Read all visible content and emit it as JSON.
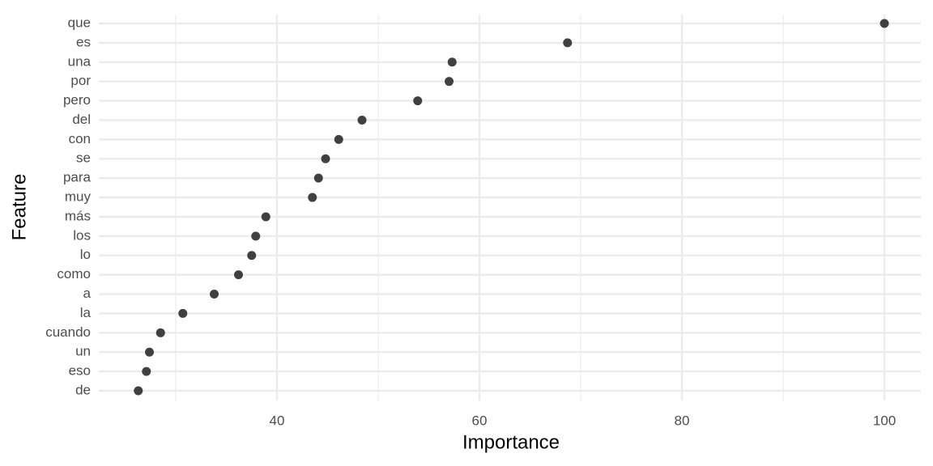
{
  "chart_data": {
    "type": "dot",
    "x_label": "Importance",
    "y_label": "Feature",
    "categories": [
      "que",
      "es",
      "una",
      "por",
      "pero",
      "del",
      "con",
      "se",
      "para",
      "muy",
      "más",
      "los",
      "lo",
      "como",
      "a",
      "la",
      "cuando",
      "un",
      "eso",
      "de"
    ],
    "values": [
      100,
      68.7,
      57.3,
      57.0,
      53.9,
      48.4,
      46.1,
      44.8,
      44.1,
      43.5,
      38.9,
      37.9,
      37.5,
      36.2,
      33.8,
      30.7,
      28.5,
      27.4,
      27.1,
      26.3
    ],
    "color": "#404040",
    "xlim": [
      22.4,
      103.6
    ],
    "xticks": [
      40,
      60,
      80,
      100
    ],
    "xminor": [
      30,
      50,
      70,
      90
    ],
    "grid": true
  }
}
